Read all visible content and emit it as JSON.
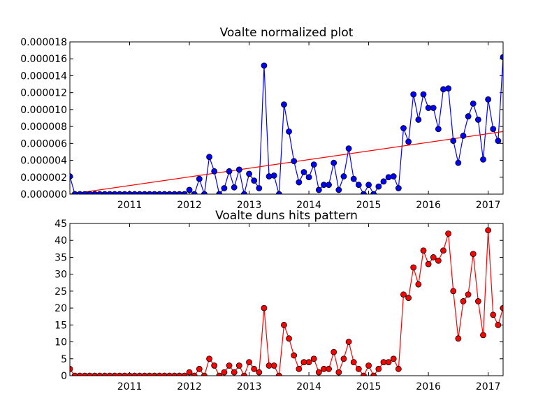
{
  "chart_data": [
    {
      "type": "line",
      "title": "Voalte normalized plot",
      "xlabel": "",
      "ylabel": "",
      "x_ticks": [
        "2011",
        "2012",
        "2013",
        "2014",
        "2015",
        "2016",
        "2017"
      ],
      "y_ticks": [
        "0.000000",
        "0.000002",
        "0.000004",
        "0.000006",
        "0.000008",
        "0.000010",
        "0.000012",
        "0.000014",
        "0.000016",
        "0.000018"
      ],
      "xlim": [
        "2010-01",
        "2017-04"
      ],
      "ylim": [
        0,
        1.8e-05
      ],
      "grid": false,
      "legend": "none",
      "series": [
        {
          "color": "#0000ff",
          "marker": "circle",
          "points": [
            [
              "2010-01",
              2.1e-06
            ],
            [
              "2010-02",
              0.0
            ],
            [
              "2010-03",
              0.0
            ],
            [
              "2010-04",
              0.0
            ],
            [
              "2010-05",
              0.0
            ],
            [
              "2010-06",
              0.0
            ],
            [
              "2010-07",
              0.0
            ],
            [
              "2010-08",
              0.0
            ],
            [
              "2010-09",
              0.0
            ],
            [
              "2010-10",
              0.0
            ],
            [
              "2010-11",
              0.0
            ],
            [
              "2010-12",
              0.0
            ],
            [
              "2011-01",
              0.0
            ],
            [
              "2011-02",
              0.0
            ],
            [
              "2011-03",
              0.0
            ],
            [
              "2011-04",
              0.0
            ],
            [
              "2011-05",
              0.0
            ],
            [
              "2011-06",
              0.0
            ],
            [
              "2011-07",
              0.0
            ],
            [
              "2011-08",
              0.0
            ],
            [
              "2011-09",
              0.0
            ],
            [
              "2011-10",
              0.0
            ],
            [
              "2011-11",
              0.0
            ],
            [
              "2011-12",
              0.0
            ],
            [
              "2012-01",
              5e-07
            ],
            [
              "2012-02",
              0.0
            ],
            [
              "2012-03",
              1.8e-06
            ],
            [
              "2012-04",
              0.0
            ],
            [
              "2012-05",
              4.4e-06
            ],
            [
              "2012-06",
              2.7e-06
            ],
            [
              "2012-07",
              0.0
            ],
            [
              "2012-08",
              7e-07
            ],
            [
              "2012-09",
              2.7e-06
            ],
            [
              "2012-10",
              8e-07
            ],
            [
              "2012-11",
              2.9e-06
            ],
            [
              "2012-12",
              0.0
            ],
            [
              "2013-01",
              2.4e-06
            ],
            [
              "2013-02",
              1.6e-06
            ],
            [
              "2013-03",
              7e-07
            ],
            [
              "2013-04",
              1.52e-05
            ],
            [
              "2013-05",
              2.1e-06
            ],
            [
              "2013-06",
              2.2e-06
            ],
            [
              "2013-07",
              0.0
            ],
            [
              "2013-08",
              1.06e-05
            ],
            [
              "2013-09",
              7.4e-06
            ],
            [
              "2013-10",
              3.9e-06
            ],
            [
              "2013-11",
              1.4e-06
            ],
            [
              "2013-12",
              2.6e-06
            ],
            [
              "2014-01",
              2e-06
            ],
            [
              "2014-02",
              3.5e-06
            ],
            [
              "2014-03",
              5e-07
            ],
            [
              "2014-04",
              1.1e-06
            ],
            [
              "2014-05",
              1.1e-06
            ],
            [
              "2014-06",
              3.7e-06
            ],
            [
              "2014-07",
              5e-07
            ],
            [
              "2014-08",
              2.1e-06
            ],
            [
              "2014-09",
              5.4e-06
            ],
            [
              "2014-10",
              1.8e-06
            ],
            [
              "2014-11",
              1.1e-06
            ],
            [
              "2014-12",
              0.0
            ],
            [
              "2015-01",
              1.1e-06
            ],
            [
              "2015-02",
              0.0
            ],
            [
              "2015-03",
              9e-07
            ],
            [
              "2015-04",
              1.5e-06
            ],
            [
              "2015-05",
              2e-06
            ],
            [
              "2015-06",
              2.1e-06
            ],
            [
              "2015-07",
              7e-07
            ],
            [
              "2015-08",
              7.8e-06
            ],
            [
              "2015-09",
              6.2e-06
            ],
            [
              "2015-10",
              1.18e-05
            ],
            [
              "2015-11",
              8.8e-06
            ],
            [
              "2015-12",
              1.18e-05
            ],
            [
              "2016-01",
              1.02e-05
            ],
            [
              "2016-02",
              1.02e-05
            ],
            [
              "2016-03",
              7.7e-06
            ],
            [
              "2016-04",
              1.24e-05
            ],
            [
              "2016-05",
              1.25e-05
            ],
            [
              "2016-06",
              6.3e-06
            ],
            [
              "2016-07",
              3.7e-06
            ],
            [
              "2016-08",
              6.9e-06
            ],
            [
              "2016-09",
              9.2e-06
            ],
            [
              "2016-10",
              1.07e-05
            ],
            [
              "2016-11",
              8.8e-06
            ],
            [
              "2016-12",
              4.1e-06
            ],
            [
              "2017-01",
              1.12e-05
            ],
            [
              "2017-02",
              7.7e-06
            ],
            [
              "2017-03",
              6.3e-06
            ],
            [
              "2017-04",
              1.62e-05
            ]
          ]
        }
      ],
      "trend_line": {
        "color": "#ff0000",
        "start": [
          "2010-01",
          0.0
        ],
        "end": [
          "2017-04",
          7.4e-06
        ]
      }
    },
    {
      "type": "line",
      "title": "Voalte duns hits pattern",
      "xlabel": "",
      "ylabel": "",
      "x_ticks": [
        "2011",
        "2012",
        "2013",
        "2014",
        "2015",
        "2016",
        "2017"
      ],
      "y_ticks": [
        "0",
        "5",
        "10",
        "15",
        "20",
        "25",
        "30",
        "35",
        "40",
        "45"
      ],
      "xlim": [
        "2010-01",
        "2017-04"
      ],
      "ylim": [
        0,
        45
      ],
      "grid": false,
      "legend": "none",
      "series": [
        {
          "color": "#ff0000",
          "marker": "circle",
          "points": [
            [
              "2010-01",
              2
            ],
            [
              "2010-02",
              0
            ],
            [
              "2010-03",
              0
            ],
            [
              "2010-04",
              0
            ],
            [
              "2010-05",
              0
            ],
            [
              "2010-06",
              0
            ],
            [
              "2010-07",
              0
            ],
            [
              "2010-08",
              0
            ],
            [
              "2010-09",
              0
            ],
            [
              "2010-10",
              0
            ],
            [
              "2010-11",
              0
            ],
            [
              "2010-12",
              0
            ],
            [
              "2011-01",
              0
            ],
            [
              "2011-02",
              0
            ],
            [
              "2011-03",
              0
            ],
            [
              "2011-04",
              0
            ],
            [
              "2011-05",
              0
            ],
            [
              "2011-06",
              0
            ],
            [
              "2011-07",
              0
            ],
            [
              "2011-08",
              0
            ],
            [
              "2011-09",
              0
            ],
            [
              "2011-10",
              0
            ],
            [
              "2011-11",
              0
            ],
            [
              "2011-12",
              0
            ],
            [
              "2012-01",
              1
            ],
            [
              "2012-02",
              0
            ],
            [
              "2012-03",
              2
            ],
            [
              "2012-04",
              0
            ],
            [
              "2012-05",
              5
            ],
            [
              "2012-06",
              3
            ],
            [
              "2012-07",
              0
            ],
            [
              "2012-08",
              1
            ],
            [
              "2012-09",
              3
            ],
            [
              "2012-10",
              1
            ],
            [
              "2012-11",
              3
            ],
            [
              "2012-12",
              0
            ],
            [
              "2013-01",
              4
            ],
            [
              "2013-02",
              2
            ],
            [
              "2013-03",
              1
            ],
            [
              "2013-04",
              20
            ],
            [
              "2013-05",
              3
            ],
            [
              "2013-06",
              3
            ],
            [
              "2013-07",
              0
            ],
            [
              "2013-08",
              15
            ],
            [
              "2013-09",
              11
            ],
            [
              "2013-10",
              6
            ],
            [
              "2013-11",
              2
            ],
            [
              "2013-12",
              4
            ],
            [
              "2014-01",
              4
            ],
            [
              "2014-02",
              5
            ],
            [
              "2014-03",
              1
            ],
            [
              "2014-04",
              2
            ],
            [
              "2014-05",
              2
            ],
            [
              "2014-06",
              7
            ],
            [
              "2014-07",
              1
            ],
            [
              "2014-08",
              5
            ],
            [
              "2014-09",
              10
            ],
            [
              "2014-10",
              4
            ],
            [
              "2014-11",
              2
            ],
            [
              "2014-12",
              0
            ],
            [
              "2015-01",
              3
            ],
            [
              "2015-02",
              0
            ],
            [
              "2015-03",
              2
            ],
            [
              "2015-04",
              4
            ],
            [
              "2015-05",
              4
            ],
            [
              "2015-06",
              5
            ],
            [
              "2015-07",
              2
            ],
            [
              "2015-08",
              24
            ],
            [
              "2015-09",
              23
            ],
            [
              "2015-10",
              32
            ],
            [
              "2015-11",
              27
            ],
            [
              "2015-12",
              37
            ],
            [
              "2016-01",
              33
            ],
            [
              "2016-02",
              35
            ],
            [
              "2016-03",
              34
            ],
            [
              "2016-04",
              37
            ],
            [
              "2016-05",
              42
            ],
            [
              "2016-06",
              25
            ],
            [
              "2016-07",
              11
            ],
            [
              "2016-08",
              22
            ],
            [
              "2016-09",
              24
            ],
            [
              "2016-10",
              36
            ],
            [
              "2016-11",
              22
            ],
            [
              "2016-12",
              12
            ],
            [
              "2017-01",
              43
            ],
            [
              "2017-02",
              18
            ],
            [
              "2017-03",
              15
            ],
            [
              "2017-04",
              20
            ]
          ]
        }
      ]
    }
  ]
}
